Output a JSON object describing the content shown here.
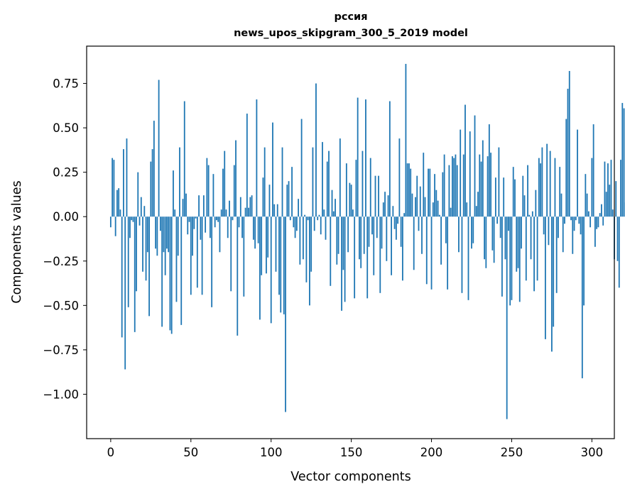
{
  "chart_data": {
    "type": "bar",
    "title": "рссия",
    "subtitle": "news_upos_skipgram_300_5_2019 model",
    "xlabel": "Vector components",
    "ylabel": "Components values",
    "xlim": [
      -15,
      314
    ],
    "ylim": [
      -1.25,
      0.96
    ],
    "xticks": [
      0,
      50,
      100,
      150,
      200,
      250,
      300
    ],
    "xtick_labels": [
      "0",
      "50",
      "100",
      "150",
      "200",
      "250",
      "300"
    ],
    "yticks": [
      0.75,
      0.5,
      0.25,
      0.0,
      -0.25,
      -0.5,
      -0.75,
      -1.0
    ],
    "ytick_labels": [
      "0.75",
      "0.50",
      "0.25",
      "0.00",
      "−0.25",
      "−0.50",
      "−0.75",
      "−1.00"
    ],
    "grid": false,
    "legend": "none",
    "bar_color": "#1f77b4",
    "series": [
      {
        "values": [
          -0.06,
          0.33,
          0.32,
          -0.11,
          0.15,
          0.16,
          0.04,
          -0.68,
          0.38,
          -0.86,
          0.44,
          -0.51,
          -0.12,
          -0.02,
          -0.03,
          -0.65,
          -0.42,
          0.25,
          -0.05,
          0.11,
          -0.31,
          0.06,
          -0.36,
          -0.2,
          -0.56,
          0.31,
          0.38,
          0.54,
          -0.18,
          -0.22,
          0.77,
          -0.08,
          -0.62,
          -0.2,
          -0.33,
          -0.18,
          -0.2,
          -0.64,
          -0.66,
          0.26,
          0.04,
          -0.48,
          -0.22,
          0.39,
          -0.61,
          0.1,
          0.65,
          0.13,
          -0.1,
          -0.03,
          -0.44,
          -0.22,
          -0.07,
          -0.01,
          -0.4,
          0.12,
          -0.13,
          -0.44,
          0.12,
          -0.09,
          0.33,
          0.29,
          -0.12,
          -0.51,
          0.24,
          -0.06,
          -0.02,
          -0.03,
          -0.2,
          0.04,
          0.27,
          0.37,
          0.04,
          -0.12,
          0.09,
          -0.42,
          -0.02,
          0.29,
          0.43,
          -0.67,
          -0.06,
          0.11,
          -0.12,
          -0.45,
          0.05,
          0.58,
          0.05,
          0.11,
          0.12,
          -0.13,
          -0.18,
          0.66,
          -0.15,
          -0.58,
          -0.33,
          0.22,
          0.39,
          -0.32,
          -0.23,
          0.18,
          -0.6,
          0.53,
          0.07,
          -0.31,
          0.07,
          -0.44,
          -0.54,
          0.39,
          -0.55,
          -1.1,
          0.18,
          0.2,
          -0.02,
          0.28,
          -0.06,
          -0.12,
          -0.08,
          0.1,
          -0.27,
          0.55,
          -0.24,
          0.01,
          -0.37,
          -0.02,
          -0.5,
          -0.31,
          0.39,
          -0.08,
          0.75,
          -0.02,
          0.01,
          -0.1,
          0.42,
          0.04,
          -0.13,
          0.31,
          0.37,
          -0.39,
          0.15,
          0.03,
          0.1,
          -0.27,
          -0.21,
          0.44,
          -0.53,
          -0.3,
          -0.48,
          0.3,
          -0.2,
          0.19,
          0.18,
          0.04,
          -0.46,
          0.32,
          0.67,
          -0.24,
          -0.29,
          0.37,
          -0.21,
          0.66,
          -0.46,
          -0.17,
          0.33,
          -0.1,
          -0.33,
          0.23,
          -0.12,
          0.23,
          -0.43,
          -0.18,
          0.08,
          0.14,
          -0.25,
          0.12,
          0.65,
          -0.33,
          0.06,
          -0.07,
          -0.13,
          -0.04,
          0.44,
          -0.17,
          -0.36,
          0.02,
          0.86,
          0.3,
          0.3,
          0.27,
          0.13,
          -0.3,
          0.11,
          0.23,
          -0.08,
          0.17,
          -0.21,
          0.36,
          0.11,
          -0.38,
          0.27,
          0.27,
          -0.41,
          0.08,
          0.24,
          0.15,
          0.09,
          0.01,
          -0.27,
          0.25,
          0.35,
          -0.15,
          -0.41,
          0.29,
          0.05,
          0.34,
          0.33,
          0.35,
          0.29,
          -0.2,
          0.49,
          -0.43,
          0.35,
          0.63,
          0.08,
          -0.47,
          0.48,
          -0.18,
          -0.15,
          0.57,
          0.06,
          0.14,
          0.35,
          0.31,
          0.43,
          -0.24,
          -0.29,
          0.34,
          0.52,
          0.36,
          -0.19,
          -0.26,
          0.22,
          -0.04,
          0.39,
          -0.12,
          -0.45,
          0.22,
          -0.24,
          -1.14,
          -0.08,
          -0.5,
          -0.47,
          0.28,
          0.21,
          -0.31,
          -0.29,
          -0.48,
          -0.18,
          0.23,
          0.12,
          -0.36,
          0.29,
          0.01,
          -0.24,
          0.03,
          -0.42,
          0.15,
          -0.36,
          0.33,
          0.3,
          0.39,
          -0.1,
          -0.69,
          0.41,
          -0.16,
          0.37,
          -0.76,
          -0.62,
          0.33,
          -0.43,
          -0.12,
          0.28,
          0.13,
          -0.2,
          -0.04,
          0.55,
          0.72,
          0.82,
          -0.02,
          -0.21,
          -0.08,
          -0.02,
          0.49,
          -0.04,
          -0.1,
          -0.91,
          -0.5,
          0.24,
          0.13,
          0.03,
          -0.06,
          0.33,
          0.52,
          -0.17,
          -0.07,
          -0.06,
          0.02,
          0.07,
          -0.05,
          0.31,
          0.14,
          0.3,
          0.18,
          0.32,
          0.04,
          -0.24,
          0.2,
          -0.25,
          -0.4,
          0.32,
          0.64,
          0.61,
          0.08
        ]
      }
    ]
  }
}
